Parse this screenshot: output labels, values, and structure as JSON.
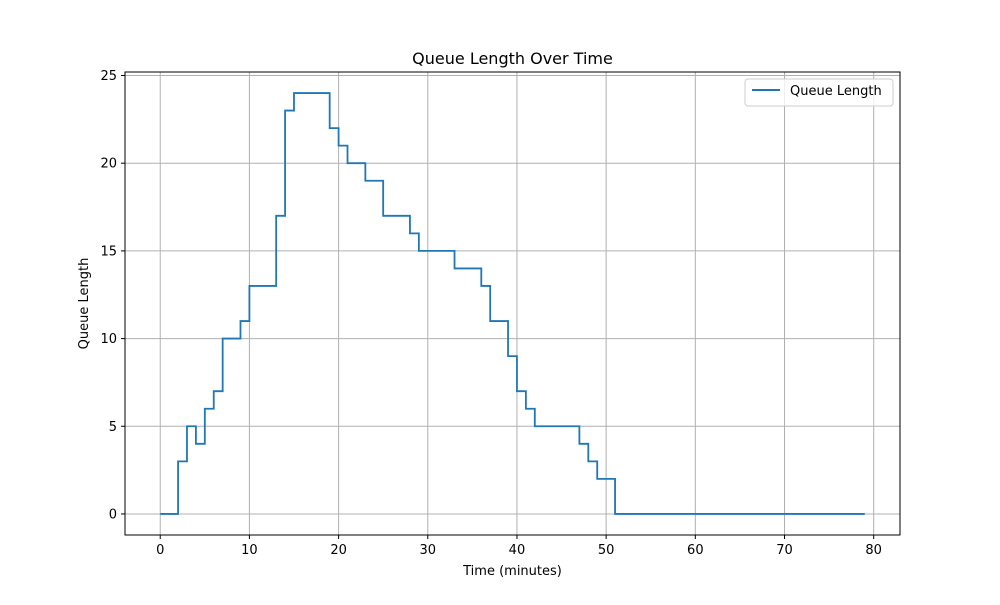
{
  "colors": {
    "series": "#1f77b4",
    "grid": "#b0b0b0",
    "axis": "#000000",
    "background": "#ffffff",
    "legend_border": "#cccccc"
  },
  "chart_data": {
    "type": "line",
    "step": "post",
    "title": "Queue Length Over Time",
    "xlabel": "Time (minutes)",
    "ylabel": "Queue Length",
    "xlim": [
      -3.95,
      82.95
    ],
    "ylim": [
      -1.2,
      25.2
    ],
    "xticks": [
      0,
      10,
      20,
      30,
      40,
      50,
      60,
      70,
      80
    ],
    "yticks": [
      0,
      5,
      10,
      15,
      20,
      25
    ],
    "grid": true,
    "legend": {
      "position": "top-right",
      "entries": [
        "Queue Length"
      ]
    },
    "series": [
      {
        "name": "Queue Length",
        "color": "#1f77b4",
        "points": [
          [
            0,
            0
          ],
          [
            2,
            3
          ],
          [
            3,
            5
          ],
          [
            4,
            4
          ],
          [
            5,
            6
          ],
          [
            6,
            7
          ],
          [
            7,
            10
          ],
          [
            9,
            11
          ],
          [
            10,
            13
          ],
          [
            13,
            17
          ],
          [
            14,
            23
          ],
          [
            15,
            24
          ],
          [
            19,
            22
          ],
          [
            20,
            21
          ],
          [
            21,
            20
          ],
          [
            23,
            19
          ],
          [
            25,
            17
          ],
          [
            28,
            16
          ],
          [
            29,
            15
          ],
          [
            33,
            14
          ],
          [
            36,
            13
          ],
          [
            37,
            11
          ],
          [
            39,
            9
          ],
          [
            40,
            7
          ],
          [
            41,
            6
          ],
          [
            42,
            5
          ],
          [
            47,
            4
          ],
          [
            48,
            3
          ],
          [
            49,
            2
          ],
          [
            51,
            0
          ],
          [
            79,
            0
          ]
        ]
      }
    ]
  }
}
